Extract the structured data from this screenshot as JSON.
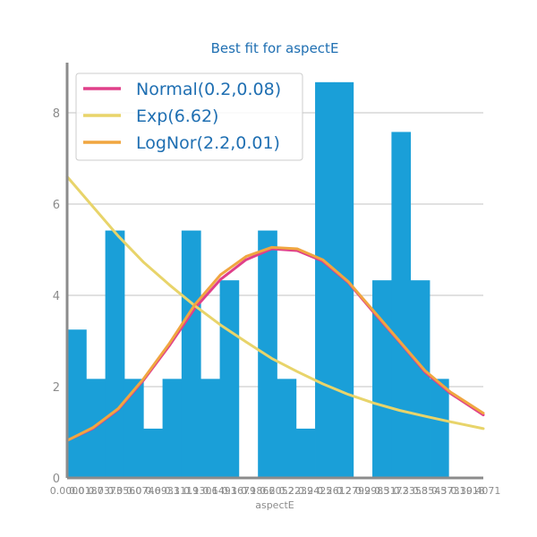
{
  "chart_data": {
    "type": "bar",
    "title": "Best fit for aspectE",
    "xlabel": "aspectE",
    "ylabel": "",
    "xlim": [
      0.0,
      0.407
    ],
    "ylim": [
      0,
      9.0
    ],
    "yticks": [
      0,
      2,
      4,
      6,
      8
    ],
    "xtick_labels": [
      "0.0000",
      "0.0187",
      "0.0373",
      "0.0560",
      "0.0746",
      "0.0933",
      "0.1119",
      "0.1306",
      "0.1493",
      "0.1679",
      "0.1866",
      "0.2052",
      "0.2239",
      "0.2425",
      "0.2612",
      "0.2799",
      "0.2985",
      "0.3172",
      "0.3358",
      "0.3545",
      "0.3731",
      "0.3918",
      "0.4071"
    ],
    "grid": true,
    "bar_color": "#1a9fd8",
    "histogram": {
      "bin_edges": [
        0.0,
        0.0187,
        0.0373,
        0.056,
        0.0746,
        0.0933,
        0.1119,
        0.1306,
        0.1493,
        0.1679,
        0.1866,
        0.2052,
        0.2239,
        0.2425,
        0.2612,
        0.2799,
        0.2985,
        0.3172,
        0.3358,
        0.3545,
        0.3731,
        0.3918,
        0.4071
      ],
      "values": [
        3.25,
        2.17,
        5.42,
        2.17,
        1.08,
        2.17,
        5.42,
        2.17,
        4.33,
        0,
        5.42,
        2.17,
        1.08,
        8.67,
        8.67,
        0,
        4.33,
        7.58,
        4.33,
        2.17,
        0,
        0
      ]
    },
    "series": [
      {
        "name": "Normal(0.2,0.08)",
        "color": "#e0408a",
        "x": [
          0.0,
          0.025,
          0.05,
          0.075,
          0.1,
          0.125,
          0.15,
          0.175,
          0.2,
          0.225,
          0.25,
          0.275,
          0.3,
          0.325,
          0.35,
          0.375,
          0.407
        ],
        "y": [
          0.82,
          1.08,
          1.5,
          2.15,
          2.9,
          3.72,
          4.35,
          4.78,
          5.02,
          4.98,
          4.75,
          4.28,
          3.62,
          2.98,
          2.32,
          1.85,
          1.38
        ]
      },
      {
        "name": "Exp(6.62)",
        "color": "#e8d46a",
        "x": [
          0.0,
          0.025,
          0.05,
          0.075,
          0.1,
          0.125,
          0.15,
          0.175,
          0.2,
          0.225,
          0.25,
          0.275,
          0.3,
          0.325,
          0.35,
          0.375,
          0.407
        ],
        "y": [
          6.6,
          5.95,
          5.3,
          4.72,
          4.23,
          3.77,
          3.35,
          2.98,
          2.62,
          2.33,
          2.06,
          1.83,
          1.64,
          1.48,
          1.35,
          1.23,
          1.08
        ]
      },
      {
        "name": "LogNor(2.2,0.01)",
        "color": "#f0a640",
        "x": [
          0.0,
          0.025,
          0.05,
          0.075,
          0.1,
          0.125,
          0.15,
          0.175,
          0.2,
          0.225,
          0.25,
          0.275,
          0.3,
          0.325,
          0.35,
          0.375,
          0.407
        ],
        "y": [
          0.82,
          1.1,
          1.52,
          2.18,
          2.95,
          3.8,
          4.45,
          4.85,
          5.05,
          5.02,
          4.78,
          4.3,
          3.65,
          3.0,
          2.35,
          1.88,
          1.42
        ]
      }
    ],
    "legend": "top-left"
  }
}
